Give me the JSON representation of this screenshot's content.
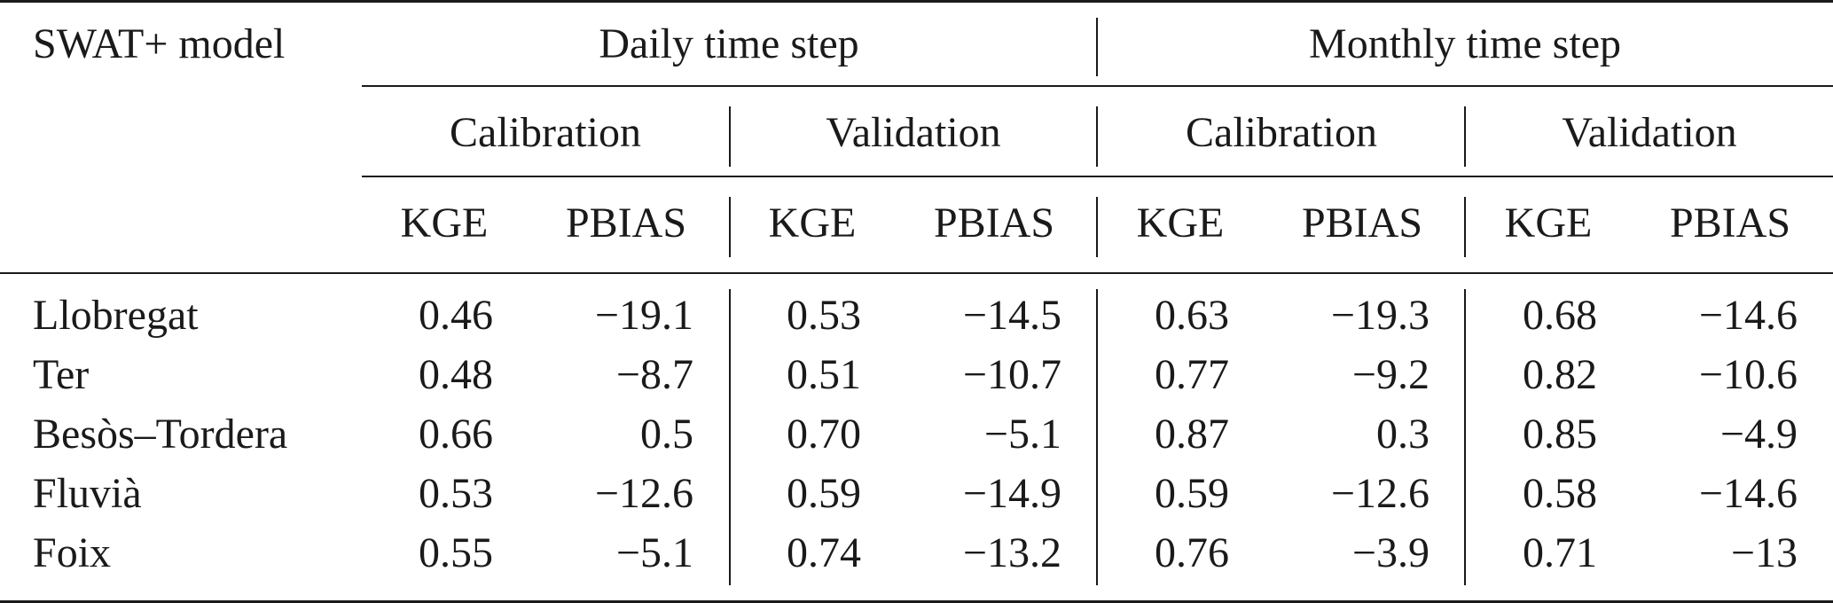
{
  "table": {
    "stub_header": "SWAT+ model",
    "groups": [
      {
        "label": "Daily time step",
        "periods": [
          {
            "label": "Calibration",
            "metrics": [
              "KGE",
              "PBIAS"
            ]
          },
          {
            "label": "Validation",
            "metrics": [
              "KGE",
              "PBIAS"
            ]
          }
        ]
      },
      {
        "label": "Monthly time step",
        "periods": [
          {
            "label": "Calibration",
            "metrics": [
              "KGE",
              "PBIAS"
            ]
          },
          {
            "label": "Validation",
            "metrics": [
              "KGE",
              "PBIAS"
            ]
          }
        ]
      }
    ],
    "rows": [
      {
        "name": "Llobregat",
        "values": [
          "0.46",
          "−19.1",
          "0.53",
          "−14.5",
          "0.63",
          "−19.3",
          "0.68",
          "−14.6"
        ]
      },
      {
        "name": "Ter",
        "values": [
          "0.48",
          "−8.7",
          "0.51",
          "−10.7",
          "0.77",
          "−9.2",
          "0.82",
          "−10.6"
        ]
      },
      {
        "name": "Besòs–Tordera",
        "values": [
          "0.66",
          "0.5",
          "0.70",
          "−5.1",
          "0.87",
          "0.3",
          "0.85",
          "−4.9"
        ]
      },
      {
        "name": "Fluvià",
        "values": [
          "0.53",
          "−12.6",
          "0.59",
          "−14.9",
          "0.59",
          "−12.6",
          "0.58",
          "−14.6"
        ]
      },
      {
        "name": "Foix",
        "values": [
          "0.55",
          "−5.1",
          "0.74",
          "−13.2",
          "0.76",
          "−3.9",
          "0.71",
          "−13"
        ]
      }
    ]
  }
}
